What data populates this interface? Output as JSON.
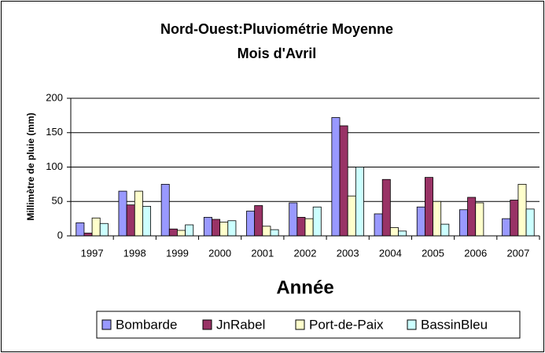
{
  "chart_data": {
    "type": "bar",
    "title": "Nord-Ouest:Pluviométrie Moyenne",
    "subtitle": "Mois d'Avril",
    "y_label": "Millimètre de pluie (mm)",
    "x_label": "Année",
    "categories": [
      "1997",
      "1998",
      "1999",
      "2000",
      "2001",
      "2002",
      "2003",
      "2004",
      "2005",
      "2006",
      "2007"
    ],
    "series": [
      {
        "name": "Bombarde",
        "color": "#9999ff",
        "values": [
          19,
          65,
          75,
          27,
          36,
          48,
          172,
          32,
          42,
          38,
          25
        ]
      },
      {
        "name": "JnRabel",
        "color": "#993366",
        "values": [
          4,
          45,
          10,
          24,
          44,
          27,
          160,
          82,
          85,
          56,
          52
        ]
      },
      {
        "name": "Port-de-Paix",
        "color": "#ffffcc",
        "values": [
          26,
          65,
          8,
          20,
          14,
          25,
          58,
          12,
          50,
          48,
          75
        ]
      },
      {
        "name": "BassinBleu",
        "color": "#ccffff",
        "values": [
          18,
          43,
          16,
          22,
          9,
          42,
          100,
          7,
          17,
          null,
          39
        ]
      }
    ],
    "ylim": [
      0,
      200
    ],
    "yticks": [
      0,
      50,
      100,
      150,
      200
    ],
    "grid": true,
    "legend": "bottom"
  }
}
